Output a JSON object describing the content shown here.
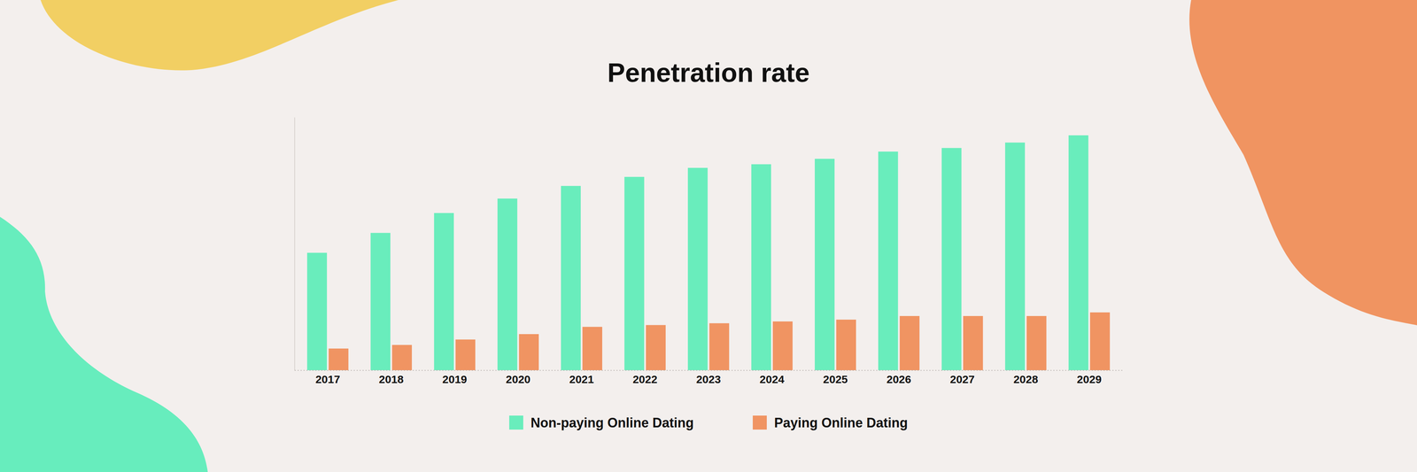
{
  "chart_data": {
    "type": "bar",
    "title": "Penetration rate",
    "categories": [
      "2017",
      "2018",
      "2019",
      "2020",
      "2021",
      "2022",
      "2023",
      "2024",
      "2025",
      "2026",
      "2027",
      "2028",
      "2029"
    ],
    "series": [
      {
        "name": "Non-paying Online Dating",
        "color": "#69edbc",
        "values": [
          6.5,
          7.6,
          8.7,
          9.5,
          10.2,
          10.7,
          11.2,
          11.4,
          11.7,
          12.1,
          12.3,
          12.6,
          13.0
        ]
      },
      {
        "name": "Paying Online Dating",
        "color": "#f09462",
        "values": [
          1.2,
          1.4,
          1.7,
          2.0,
          2.4,
          2.5,
          2.6,
          2.7,
          2.8,
          3.0,
          3.0,
          3.0,
          3.2
        ]
      }
    ],
    "ylim": [
      0,
      14
    ],
    "tick_labels": "x",
    "legend": "bottom"
  }
}
